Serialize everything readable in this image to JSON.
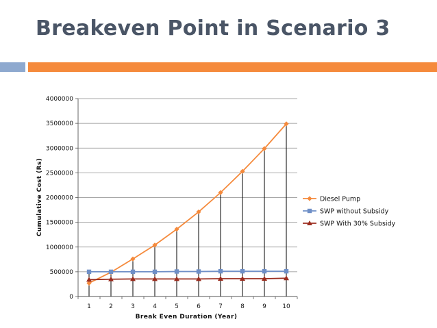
{
  "slide": {
    "title": "Breakeven Point in Scenario 3",
    "accent_left_color": "#8ea9cf",
    "accent_main_color": "#f58a3c"
  },
  "chart_data": {
    "type": "line",
    "title": "",
    "xlabel": "Break Even Duration (Year)",
    "ylabel": "Cumulative Cost (Rs)",
    "x": [
      1,
      2,
      3,
      4,
      5,
      6,
      7,
      8,
      9,
      10
    ],
    "ylim": [
      0,
      4000000
    ],
    "yticks": [
      0,
      500000,
      1000000,
      1500000,
      2000000,
      2500000,
      3000000,
      3500000,
      4000000
    ],
    "grid": true,
    "legend_position": "right",
    "drop_lines": true,
    "series": [
      {
        "name": "Diesel Pump",
        "color": "#f58a3c",
        "marker": "diamond",
        "values": [
          270000,
          490000,
          760000,
          1040000,
          1360000,
          1710000,
          2100000,
          2530000,
          2990000,
          3490000
        ]
      },
      {
        "name": "SWP without Subsidy",
        "color": "#6f8fc7",
        "marker": "square",
        "values": [
          500000,
          500000,
          500000,
          500000,
          505000,
          505000,
          510000,
          510000,
          510000,
          510000
        ]
      },
      {
        "name": "SWP With 30% Subsidy",
        "color": "#9b2d1f",
        "marker": "triangle",
        "values": [
          340000,
          350000,
          355000,
          355000,
          355000,
          355000,
          360000,
          360000,
          360000,
          370000
        ]
      }
    ]
  }
}
